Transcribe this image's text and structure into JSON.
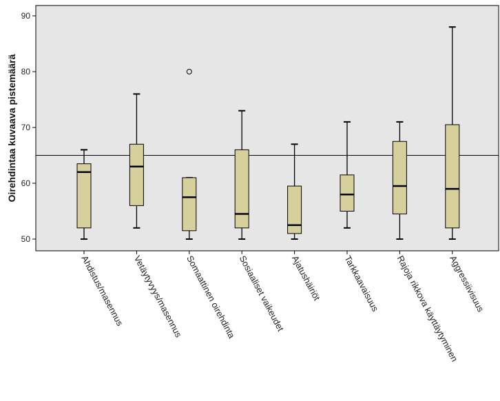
{
  "chart_data": {
    "type": "boxplot",
    "title": "",
    "xlabel": "",
    "ylabel": "Oirehdintaa kuvaava pistemäärä",
    "ylim": [
      48,
      92
    ],
    "yticks": [
      50,
      60,
      70,
      80,
      90
    ],
    "reference_line": 65,
    "grid": false,
    "colors": {
      "box_fill": "#d6d09c",
      "plot_bg": "#e6e6e6",
      "line": "#000000"
    },
    "categories": [
      "Ahdistus/masennus",
      "Vetäytyvyys/masennus",
      "Somaattinen oirehdinta",
      "Sosiaaliset vaikeudet",
      "Ajatushäiriöt",
      "Tarkkaavaisuus",
      "Rajoja rikkova käyttäytyminen",
      "Aggressiivisuus"
    ],
    "boxes": [
      {
        "min": 50,
        "q1": 52,
        "median": 62,
        "q3": 63.5,
        "max": 66,
        "outliers": []
      },
      {
        "min": 52,
        "q1": 56,
        "median": 63,
        "q3": 67,
        "max": 76,
        "outliers": []
      },
      {
        "min": 50,
        "q1": 51.5,
        "median": 57.5,
        "q3": 61,
        "max": 61,
        "outliers": [
          80
        ]
      },
      {
        "min": 50,
        "q1": 52,
        "median": 54.5,
        "q3": 66,
        "max": 73,
        "outliers": []
      },
      {
        "min": 50,
        "q1": 51,
        "median": 52.5,
        "q3": 59.5,
        "max": 67,
        "outliers": []
      },
      {
        "min": 52,
        "q1": 55,
        "median": 58,
        "q3": 61.5,
        "max": 71,
        "outliers": []
      },
      {
        "min": 50,
        "q1": 54.5,
        "median": 59.5,
        "q3": 67.5,
        "max": 71,
        "outliers": []
      },
      {
        "min": 50,
        "q1": 52,
        "median": 59,
        "q3": 70.5,
        "max": 88,
        "outliers": []
      }
    ]
  }
}
